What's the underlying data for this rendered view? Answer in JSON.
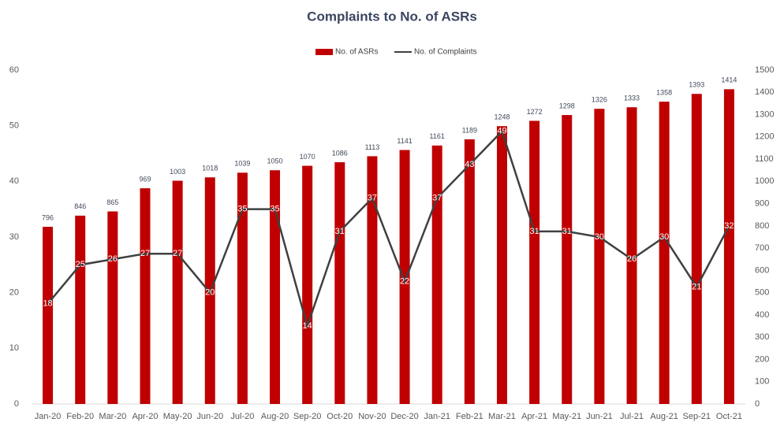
{
  "chart_data": {
    "type": "combo",
    "title": "Complaints to No. of ASRs",
    "categories": [
      "Jan-20",
      "Feb-20",
      "Mar-20",
      "Apr-20",
      "May-20",
      "Jun-20",
      "Jul-20",
      "Aug-20",
      "Sep-20",
      "Oct-20",
      "Nov-20",
      "Dec-20",
      "Jan-21",
      "Feb-21",
      "Mar-21",
      "Apr-21",
      "May-21",
      "Jun-21",
      "Jul-21",
      "Aug-21",
      "Sep-21",
      "Oct-21"
    ],
    "series": [
      {
        "name": "No. of ASRs",
        "type": "bar",
        "axis": "y2",
        "color": "#c00000",
        "values": [
          796,
          846,
          865,
          969,
          1003,
          1018,
          1039,
          1050,
          1070,
          1086,
          1113,
          1141,
          1161,
          1189,
          1248,
          1272,
          1298,
          1326,
          1333,
          1358,
          1393,
          1414
        ]
      },
      {
        "name": "No. of Complaints",
        "type": "line",
        "axis": "y",
        "color": "#404040",
        "values": [
          18,
          25,
          26,
          27,
          27,
          20,
          35,
          35,
          14,
          31,
          37,
          22,
          37,
          43,
          49,
          31,
          31,
          30,
          26,
          30,
          21,
          32
        ]
      }
    ],
    "ylim": [
      0,
      60
    ],
    "yticks": [
      0,
      10,
      20,
      30,
      40,
      50,
      60
    ],
    "y2lim": [
      0,
      1500
    ],
    "y2ticks": [
      0,
      100,
      200,
      300,
      400,
      500,
      600,
      700,
      800,
      900,
      1000,
      1100,
      1200,
      1300,
      1400,
      1500
    ],
    "legend": "top"
  }
}
